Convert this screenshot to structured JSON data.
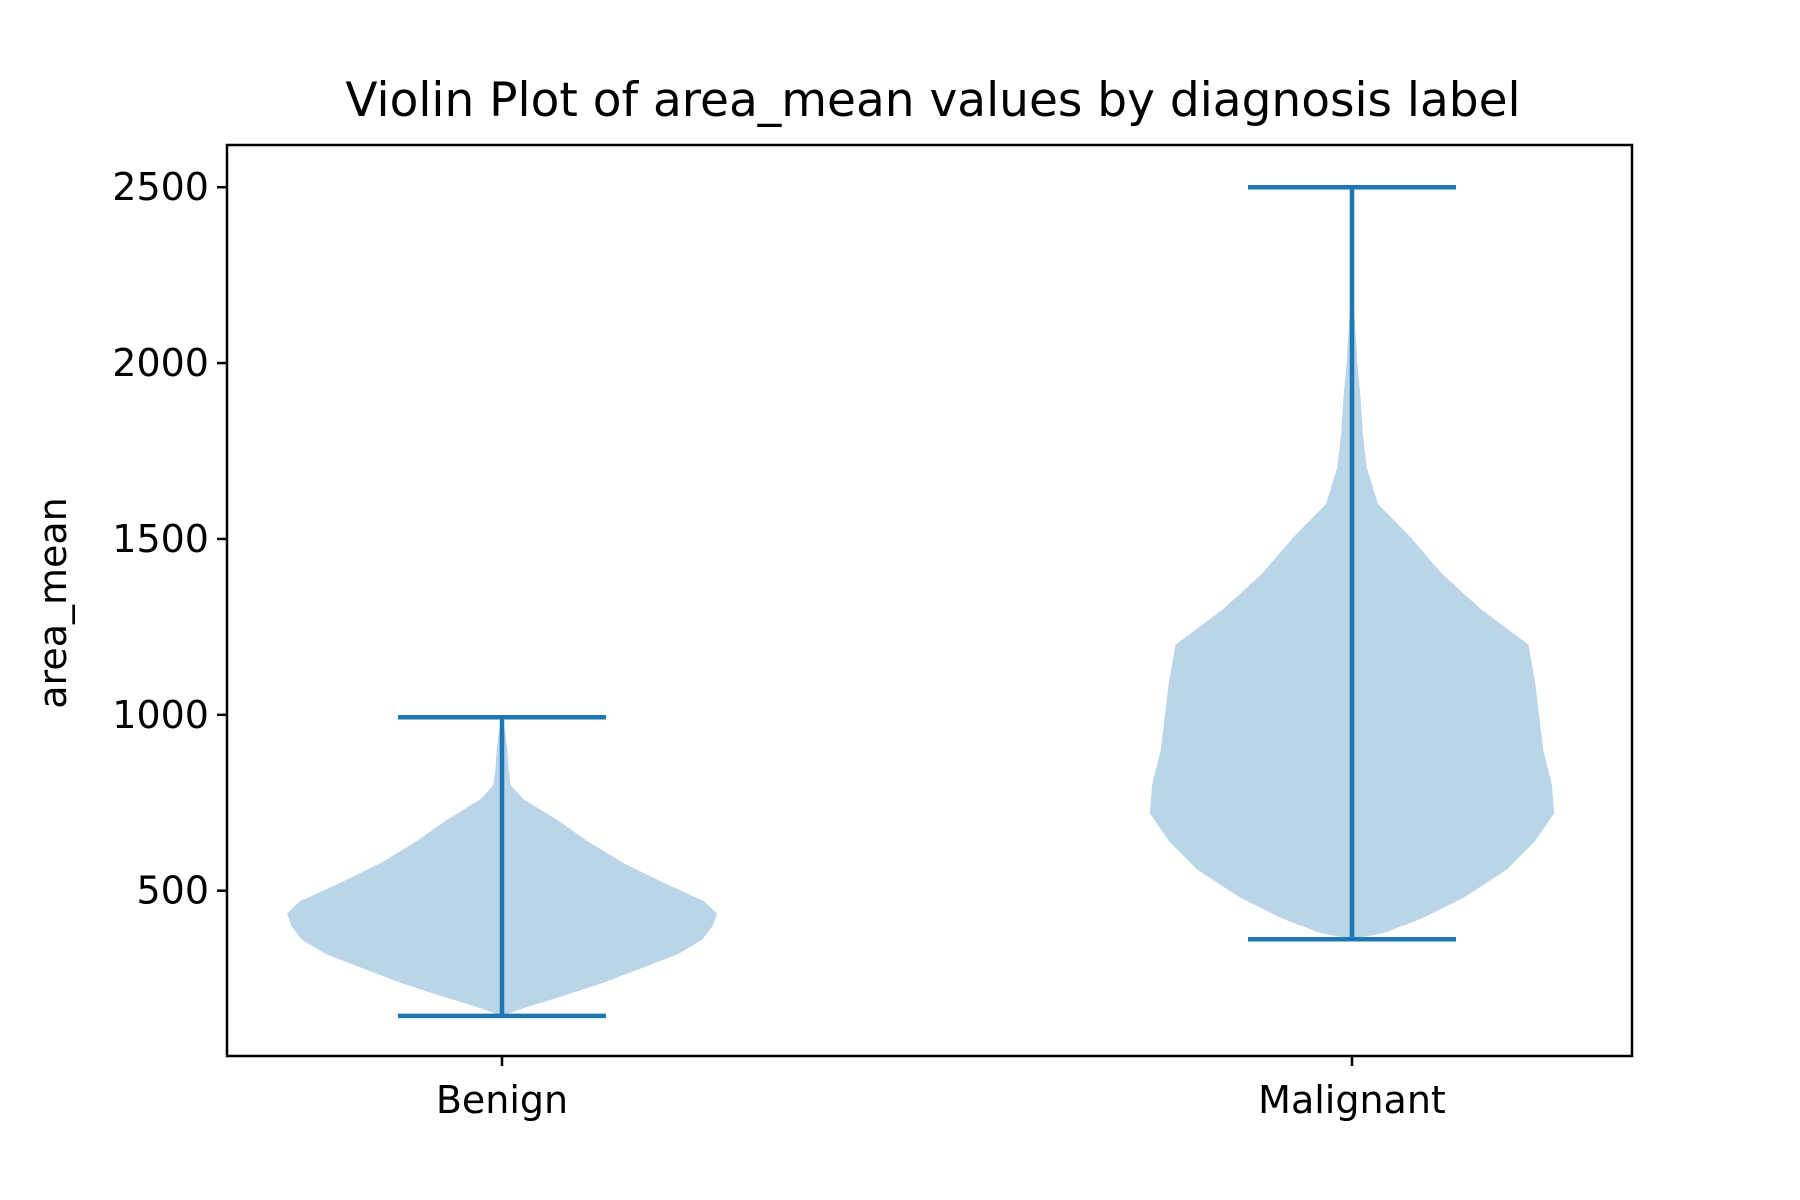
{
  "chart_data": {
    "type": "violin",
    "title": "Violin Plot of area_mean values by diagnosis label",
    "xlabel": "",
    "ylabel": "area_mean",
    "ylim": [
      30,
      2620
    ],
    "yticks": [
      500,
      1000,
      1500,
      2000,
      2500
    ],
    "ytick_labels": [
      "500",
      "1000",
      "1500",
      "2000",
      "2500"
    ],
    "categories": [
      "Benign",
      "Malignant"
    ],
    "grid": false,
    "colors": {
      "body": "#bad5e8",
      "lines": "#1f77b4"
    },
    "violins": [
      {
        "category": "Benign",
        "min": 144,
        "max": 993,
        "profile": [
          [
            144,
            0.0
          ],
          [
            170,
            0.12
          ],
          [
            200,
            0.28
          ],
          [
            240,
            0.48
          ],
          [
            280,
            0.65
          ],
          [
            320,
            0.82
          ],
          [
            360,
            0.93
          ],
          [
            400,
            0.98
          ],
          [
            435,
            1.0
          ],
          [
            470,
            0.94
          ],
          [
            520,
            0.76
          ],
          [
            580,
            0.56
          ],
          [
            640,
            0.4
          ],
          [
            700,
            0.26
          ],
          [
            760,
            0.1
          ],
          [
            800,
            0.04
          ],
          [
            850,
            0.03
          ],
          [
            900,
            0.025
          ],
          [
            950,
            0.015
          ],
          [
            993,
            0.0
          ]
        ]
      },
      {
        "category": "Malignant",
        "min": 362,
        "max": 2500,
        "profile": [
          [
            362,
            0.0
          ],
          [
            380,
            0.15
          ],
          [
            420,
            0.32
          ],
          [
            480,
            0.52
          ],
          [
            560,
            0.72
          ],
          [
            640,
            0.85
          ],
          [
            720,
            0.94
          ],
          [
            800,
            0.93
          ],
          [
            900,
            0.89
          ],
          [
            1000,
            0.87
          ],
          [
            1100,
            0.85
          ],
          [
            1200,
            0.82
          ],
          [
            1300,
            0.6
          ],
          [
            1400,
            0.42
          ],
          [
            1500,
            0.28
          ],
          [
            1600,
            0.12
          ],
          [
            1700,
            0.07
          ],
          [
            1800,
            0.05
          ],
          [
            1900,
            0.04
          ],
          [
            2000,
            0.025
          ],
          [
            2150,
            0.01
          ],
          [
            2300,
            0.008
          ],
          [
            2450,
            0.005
          ],
          [
            2500,
            0.0
          ]
        ]
      }
    ]
  }
}
